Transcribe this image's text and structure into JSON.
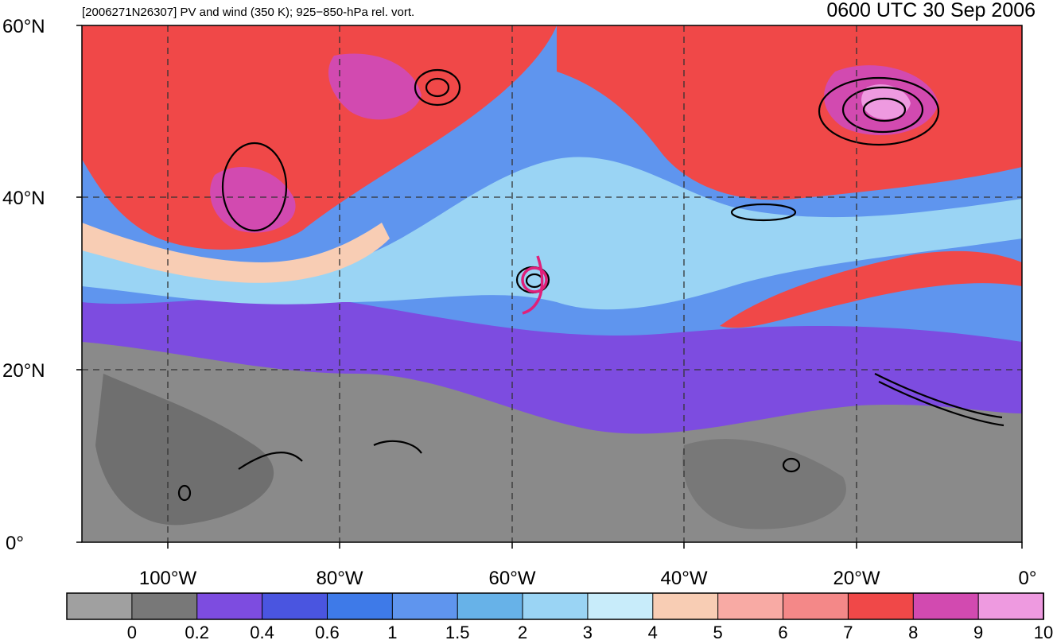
{
  "header": {
    "left_title": "[2006271N26307] PV and wind (350 K); 925−850-hPa rel. vort.",
    "right_title": "0600 UTC 30 Sep 2006"
  },
  "map": {
    "lat_labels": [
      "60°N",
      "40°N",
      "20°N",
      "0°"
    ],
    "lon_labels": [
      "100°W",
      "80°W",
      "60°W",
      "40°W",
      "20°W",
      "0°"
    ],
    "storm_marker_color": "#e0207a",
    "contour_color": "#000000"
  },
  "colorbar": {
    "colors": [
      "#a0a0a0",
      "#787878",
      "#7d4ce0",
      "#4a55e0",
      "#3e7ae8",
      "#5f95ee",
      "#67b2e8",
      "#9ad4f4",
      "#c8ecfa",
      "#f8cdb4",
      "#f8aaa4",
      "#f48888",
      "#f04848",
      "#d24ab0",
      "#ee9ae0"
    ],
    "labels": [
      "0",
      "0.2",
      "0.4",
      "0.6",
      "1",
      "1.5",
      "2",
      "3",
      "4",
      "5",
      "6",
      "7",
      "8",
      "9",
      "10"
    ]
  }
}
